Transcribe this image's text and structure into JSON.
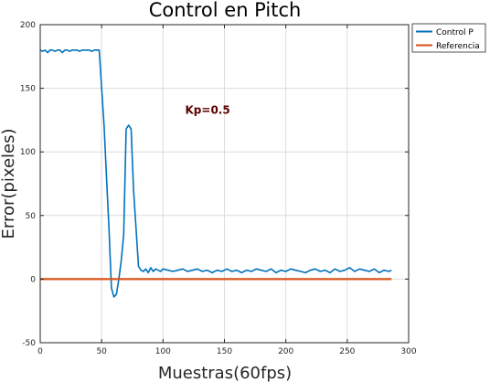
{
  "chart_data": {
    "type": "line",
    "title": "Control en Pitch",
    "xlabel": "Muestras(60fps)",
    "ylabel": "Error(pixeles)",
    "xlim": [
      0,
      300
    ],
    "ylim": [
      -50,
      200
    ],
    "xticks": [
      0,
      50,
      100,
      150,
      200,
      250,
      300
    ],
    "yticks": [
      -50,
      0,
      50,
      100,
      150,
      200
    ],
    "grid": true,
    "legend_position": "outside-top-right",
    "annotation": {
      "text": "Kp=0.5",
      "x": 118,
      "y": 130,
      "color": "#5c0000"
    },
    "series": [
      {
        "name": "Control P",
        "color": "#0072bd",
        "x": [
          0,
          2,
          4,
          6,
          8,
          10,
          12,
          14,
          16,
          18,
          20,
          22,
          24,
          26,
          28,
          30,
          32,
          34,
          36,
          38,
          40,
          42,
          44,
          46,
          48,
          50,
          52,
          54,
          56,
          58,
          60,
          62,
          64,
          66,
          68,
          70,
          72,
          74,
          76,
          78,
          80,
          82,
          84,
          86,
          88,
          90,
          92,
          94,
          96,
          98,
          100,
          104,
          108,
          112,
          116,
          120,
          124,
          128,
          132,
          136,
          140,
          144,
          148,
          152,
          156,
          160,
          164,
          168,
          172,
          176,
          180,
          184,
          188,
          192,
          196,
          200,
          204,
          208,
          212,
          216,
          220,
          224,
          228,
          232,
          236,
          240,
          244,
          248,
          252,
          256,
          260,
          264,
          268,
          272,
          276,
          280,
          284,
          286
        ],
        "y": [
          180,
          179,
          180,
          178,
          180,
          180,
          179,
          180,
          180,
          178,
          180,
          180,
          179,
          180,
          180,
          180,
          179,
          180,
          180,
          180,
          180,
          179,
          180,
          180,
          180,
          150,
          120,
          80,
          40,
          -7,
          -14,
          -12,
          0,
          15,
          35,
          118,
          121,
          118,
          70,
          40,
          10,
          7,
          6,
          8,
          5,
          9,
          6,
          8,
          7,
          6,
          8,
          7,
          6,
          7,
          8,
          6,
          7,
          8,
          6,
          7,
          5,
          7,
          6,
          8,
          6,
          7,
          5,
          7,
          6,
          8,
          7,
          6,
          8,
          5,
          7,
          6,
          8,
          7,
          6,
          5,
          7,
          8,
          6,
          7,
          5,
          8,
          6,
          7,
          9,
          6,
          8,
          7,
          6,
          8,
          5,
          7,
          6,
          7
        ]
      },
      {
        "name": "Referencia",
        "color": "#d95319",
        "x": [
          0,
          286
        ],
        "y": [
          0,
          0
        ]
      }
    ]
  }
}
